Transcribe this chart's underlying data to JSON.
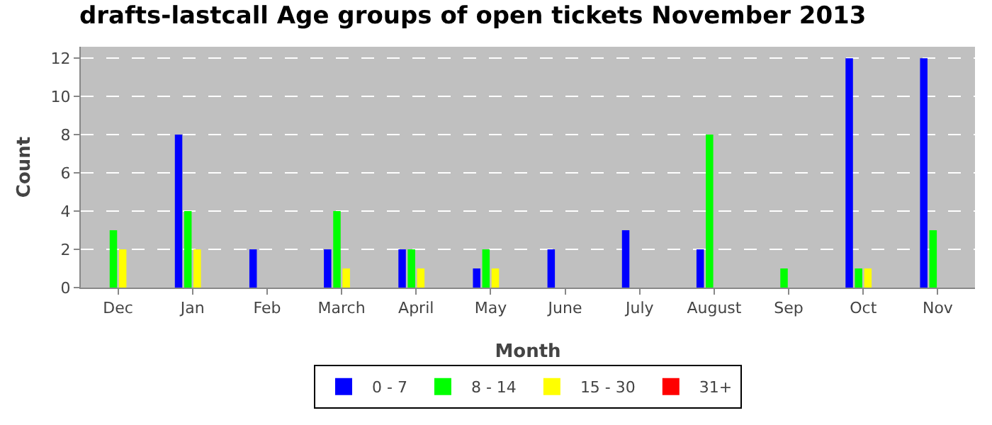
{
  "chart_data": {
    "type": "bar",
    "title": "drafts-lastcall Age groups of open tickets November 2013",
    "xlabel": "Month",
    "ylabel": "Count",
    "categories": [
      "Dec",
      "Jan",
      "Feb",
      "March",
      "April",
      "May",
      "June",
      "July",
      "August",
      "Sep",
      "Oct",
      "Nov"
    ],
    "series": [
      {
        "name": "0 - 7",
        "color": "#0000ff",
        "values": [
          0,
          8,
          2,
          2,
          2,
          1,
          2,
          3,
          2,
          0,
          12,
          12
        ]
      },
      {
        "name": "8 - 14",
        "color": "#00ff00",
        "values": [
          3,
          4,
          0,
          4,
          2,
          2,
          0,
          0,
          8,
          1,
          1,
          3
        ]
      },
      {
        "name": "15 - 30",
        "color": "#ffff00",
        "values": [
          2,
          2,
          0,
          1,
          1,
          1,
          0,
          0,
          0,
          0,
          1,
          0
        ]
      },
      {
        "name": "31+",
        "color": "#ff0000",
        "values": [
          0,
          0,
          0,
          0,
          0,
          0,
          0,
          0,
          0,
          0,
          0,
          0
        ]
      }
    ],
    "ylim": [
      0,
      12.6
    ],
    "yticks": [
      0,
      2,
      4,
      6,
      8,
      10,
      12
    ],
    "grid": "y",
    "legend": "bottom"
  }
}
